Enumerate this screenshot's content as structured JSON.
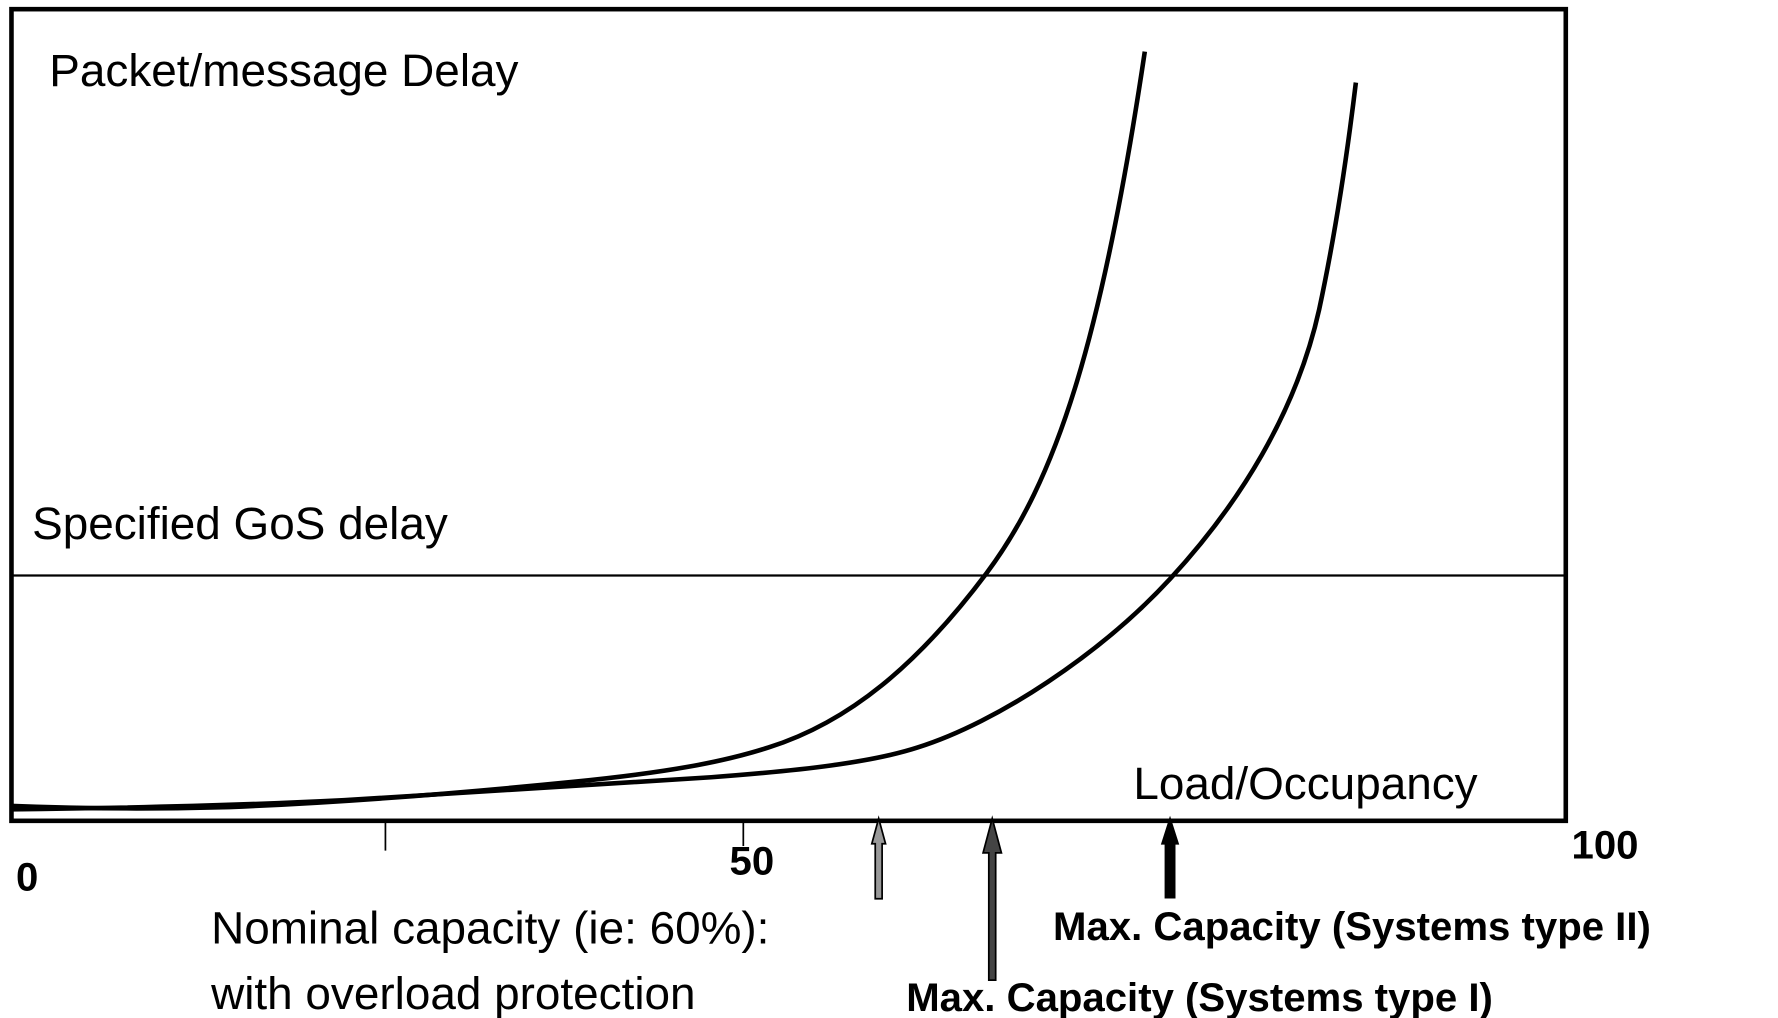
{
  "y_label": "Packet/message Delay",
  "gos_label": "Specified GoS delay",
  "x_label": "Load/Occupancy",
  "x_ticks": [
    "0",
    "50",
    "100"
  ],
  "nominal": [
    "Nominal capacity (ie: 60%):",
    "with overload protection"
  ],
  "max_type_1": "Max. Capacity (Systems type I)",
  "max_type_2": "Max. Capacity (Systems type II)"
}
